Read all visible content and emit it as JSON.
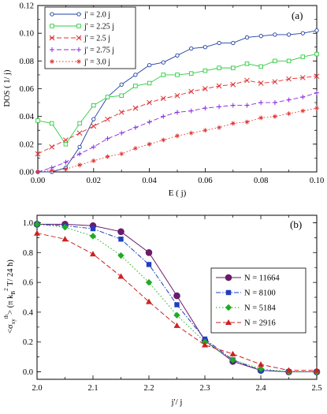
{
  "chart_data": [
    {
      "panel": "(a)",
      "type": "line",
      "xlabel": "E ( j)",
      "ylabel": "DOS ( 1/ j)",
      "xlim": [
        0,
        0.1
      ],
      "ylim": [
        0,
        0.12
      ],
      "xticks": [
        "0.00",
        "0.02",
        "0.04",
        "0.06",
        "0.08",
        "0.10"
      ],
      "yticks": [
        "0.00",
        "0.02",
        "0.04",
        "0.06",
        "0.08",
        "0.10",
        "0.12"
      ],
      "legend_position": "top-left",
      "x": [
        0.0,
        0.005,
        0.01,
        0.015,
        0.02,
        0.025,
        0.03,
        0.035,
        0.04,
        0.045,
        0.05,
        0.055,
        0.06,
        0.065,
        0.07,
        0.075,
        0.08,
        0.085,
        0.09,
        0.095,
        0.1
      ],
      "series": [
        {
          "name": "j' = 2.0 j",
          "color": "#1f3fa0",
          "dash": "solid",
          "marker": "circle-open",
          "values": [
            0.0,
            0.0,
            0.003,
            0.018,
            0.038,
            0.054,
            0.063,
            0.07,
            0.077,
            0.079,
            0.084,
            0.089,
            0.09,
            0.093,
            0.093,
            0.097,
            0.098,
            0.099,
            0.099,
            0.1,
            0.102
          ]
        },
        {
          "name": "j' = 2.25 j",
          "color": "#2ecc40",
          "dash": "solid",
          "marker": "square-open",
          "values": [
            0.037,
            0.035,
            0.02,
            0.035,
            0.048,
            0.054,
            0.055,
            0.062,
            0.064,
            0.07,
            0.07,
            0.071,
            0.073,
            0.075,
            0.075,
            0.078,
            0.076,
            0.08,
            0.08,
            0.083,
            0.085
          ]
        },
        {
          "name": "j' = 2.5 j",
          "color": "#e03030",
          "dash": "dashed",
          "marker": "x",
          "values": [
            0.013,
            0.018,
            0.023,
            0.028,
            0.033,
            0.038,
            0.043,
            0.046,
            0.05,
            0.053,
            0.055,
            0.058,
            0.06,
            0.062,
            0.063,
            0.066,
            0.064,
            0.065,
            0.067,
            0.068,
            0.069
          ]
        },
        {
          "name": "j' = 2.75 j",
          "color": "#8a2be2",
          "dash": "dashed",
          "marker": "plus",
          "values": [
            0.0,
            0.003,
            0.007,
            0.013,
            0.018,
            0.024,
            0.028,
            0.032,
            0.036,
            0.04,
            0.043,
            0.044,
            0.046,
            0.047,
            0.048,
            0.048,
            0.05,
            0.05,
            0.052,
            0.054,
            0.057
          ]
        },
        {
          "name": "j' = 3.0 j",
          "color": "#e03030",
          "dash": "dotted",
          "marker": "star",
          "values": [
            0.0,
            0.001,
            0.002,
            0.005,
            0.008,
            0.011,
            0.013,
            0.017,
            0.02,
            0.023,
            0.026,
            0.028,
            0.03,
            0.032,
            0.035,
            0.036,
            0.039,
            0.04,
            0.042,
            0.044,
            0.046
          ]
        }
      ]
    },
    {
      "panel": "(b)",
      "type": "line",
      "xlabel": "j'/ j",
      "ylabel_parts": {
        "pre": "<σ",
        "sub": "xy",
        "sup": "th",
        "mid": "> (π k",
        "sub2": "B",
        "sup2": "2",
        "post": " T/ 24 ħ)"
      },
      "xlim": [
        2.0,
        2.5
      ],
      "ylim": [
        -0.05,
        1.05
      ],
      "xticks": [
        "2.0",
        "2.1",
        "2.2",
        "2.3",
        "2.4",
        "2.5"
      ],
      "yticks": [
        "0.0",
        "0.2",
        "0.4",
        "0.6",
        "0.8",
        "1.0"
      ],
      "legend_position": "right",
      "x": [
        2.0,
        2.05,
        2.1,
        2.15,
        2.2,
        2.25,
        2.3,
        2.35,
        2.4,
        2.45,
        2.5
      ],
      "series": [
        {
          "name": "N = 11664",
          "color": "#6a1b6a",
          "dash": "solid",
          "marker": "circle",
          "values": [
            0.99,
            0.99,
            0.98,
            0.94,
            0.8,
            0.51,
            0.21,
            0.07,
            0.01,
            0.0,
            0.0
          ]
        },
        {
          "name": "N = 8100",
          "color": "#1f3fc0",
          "dash": "dashdot",
          "marker": "square",
          "values": [
            0.99,
            0.98,
            0.96,
            0.89,
            0.72,
            0.45,
            0.22,
            0.08,
            0.01,
            0.0,
            0.0
          ]
        },
        {
          "name": "N = 5184",
          "color": "#22aa22",
          "dash": "dotted",
          "marker": "diamond",
          "values": [
            0.99,
            0.97,
            0.91,
            0.78,
            0.6,
            0.38,
            0.2,
            0.08,
            0.02,
            0.0,
            0.0
          ]
        },
        {
          "name": "N = 2916",
          "color": "#cc2222",
          "dash": "dashed",
          "marker": "triangle",
          "values": [
            0.93,
            0.89,
            0.79,
            0.64,
            0.47,
            0.31,
            0.18,
            0.12,
            0.05,
            0.01,
            0.01
          ]
        }
      ]
    }
  ]
}
